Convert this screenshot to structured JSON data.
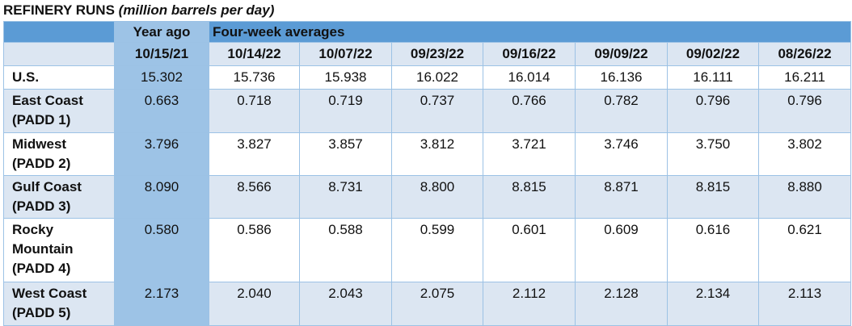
{
  "title": {
    "main": "REFINERY RUNS",
    "units": "(million barrels per day)"
  },
  "table": {
    "group_headers": [
      "Year ago",
      "Four-week averages"
    ],
    "columns": [
      "10/15/21",
      "10/14/22",
      "10/07/22",
      "09/23/22",
      "09/16/22",
      "09/09/22",
      "09/02/22",
      "08/26/22"
    ],
    "rows": [
      {
        "label": [
          "U.S."
        ],
        "values": [
          "15.302",
          "15.736",
          "15.938",
          "16.022",
          "16.014",
          "16.136",
          "16.111",
          "16.211"
        ]
      },
      {
        "label": [
          "East Coast",
          "(PADD 1)"
        ],
        "values": [
          "0.663",
          "0.718",
          "0.719",
          "0.737",
          "0.766",
          "0.782",
          "0.796",
          "0.796"
        ]
      },
      {
        "label": [
          "Midwest",
          "(PADD 2)"
        ],
        "values": [
          "3.796",
          "3.827",
          "3.857",
          "3.812",
          "3.721",
          "3.746",
          "3.750",
          "3.802"
        ]
      },
      {
        "label": [
          "Gulf Coast",
          "(PADD 3)"
        ],
        "values": [
          "8.090",
          "8.566",
          "8.731",
          "8.800",
          "8.815",
          "8.871",
          "8.815",
          "8.880"
        ]
      },
      {
        "label": [
          "Rocky",
          "Mountain",
          "(PADD 4)"
        ],
        "values": [
          "0.580",
          "0.586",
          "0.588",
          "0.599",
          "0.601",
          "0.609",
          "0.616",
          "0.621"
        ]
      },
      {
        "label": [
          "West Coast",
          "(PADD 5)"
        ],
        "values": [
          "2.173",
          "2.040",
          "2.043",
          "2.075",
          "2.112",
          "2.128",
          "2.134",
          "2.113"
        ]
      }
    ]
  }
}
